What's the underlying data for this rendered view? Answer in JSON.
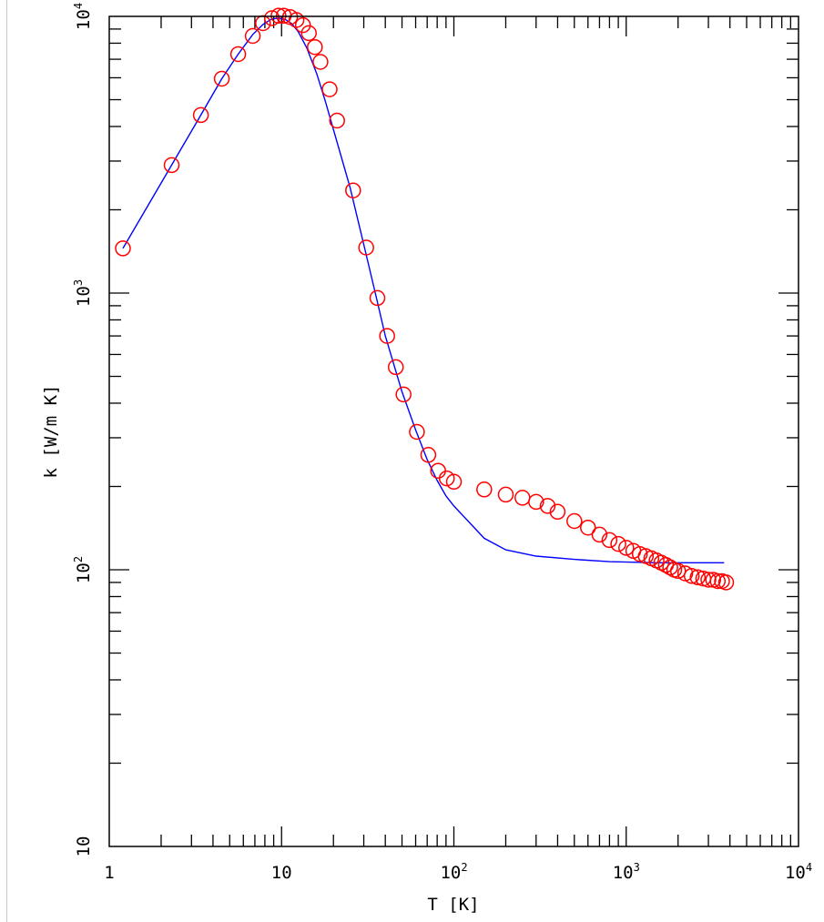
{
  "chart_data": {
    "type": "scatter",
    "title": "",
    "xlabel": "T [K]",
    "ylabel": "k [W/m K]",
    "xscale": "log",
    "yscale": "log",
    "xlim": [
      1,
      10000
    ],
    "ylim": [
      10,
      10000
    ],
    "grid": false,
    "x_tick_labels": [
      {
        "value": 1,
        "base": "1",
        "exp": ""
      },
      {
        "value": 10,
        "base": "10",
        "exp": ""
      },
      {
        "value": 100,
        "base": "10",
        "exp": "2"
      },
      {
        "value": 1000,
        "base": "10",
        "exp": "3"
      },
      {
        "value": 10000,
        "base": "10",
        "exp": "4"
      }
    ],
    "y_tick_labels": [
      {
        "value": 10,
        "base": "10",
        "exp": ""
      },
      {
        "value": 100,
        "base": "10",
        "exp": "2"
      },
      {
        "value": 1000,
        "base": "10",
        "exp": "3"
      },
      {
        "value": 10000,
        "base": "10",
        "exp": "4"
      }
    ],
    "series": [
      {
        "kind": "line",
        "color": "#0000ff",
        "x": [
          1.2,
          2.3,
          3.4,
          4.5,
          5.6,
          6.8,
          7.8,
          8.8,
          9.6,
          10.5,
          11.5,
          12.5,
          14,
          16,
          18,
          20,
          25,
          30,
          35,
          40,
          50,
          60,
          70,
          80,
          90,
          100,
          150,
          200,
          300,
          500,
          800,
          1500,
          3700
        ],
        "y": [
          1450,
          2900,
          4400,
          5950,
          7300,
          8600,
          9350,
          9800,
          9850,
          9750,
          9400,
          8800,
          7700,
          6200,
          4900,
          3900,
          2400,
          1500,
          1000,
          700,
          440,
          320,
          250,
          210,
          185,
          170,
          130,
          118,
          112,
          109,
          107,
          106,
          106
        ]
      },
      {
        "kind": "scatter",
        "color": "#ff0000",
        "marker": "open-circle",
        "x": [
          1.2,
          2.3,
          3.4,
          4.5,
          5.6,
          6.8,
          7.8,
          8.8,
          9.6,
          10.3,
          11.2,
          12.2,
          13.3,
          14.4,
          15.6,
          16.8,
          19,
          21,
          26,
          31,
          36,
          41,
          46,
          51,
          61,
          71,
          81,
          91,
          100,
          150,
          200,
          250,
          300,
          350,
          400,
          500,
          600,
          700,
          800,
          900,
          1000,
          1100,
          1200,
          1300,
          1400,
          1500,
          1600,
          1700,
          1800,
          1900,
          2000,
          2200,
          2400,
          2600,
          2800,
          3000,
          3200,
          3400,
          3600,
          3800
        ],
        "y": [
          1450,
          2900,
          4400,
          5950,
          7300,
          8500,
          9450,
          9850,
          10050,
          10050,
          9950,
          9700,
          9300,
          8700,
          7750,
          6850,
          5450,
          4200,
          2350,
          1460,
          960,
          700,
          540,
          430,
          315,
          260,
          228,
          214,
          208,
          195,
          187,
          182,
          176,
          170,
          162,
          150,
          142,
          134,
          128,
          124,
          120,
          117,
          114,
          112,
          110,
          108,
          106,
          104,
          102,
          100,
          99,
          97,
          95,
          94,
          93,
          92,
          92,
          91,
          91,
          90
        ]
      }
    ]
  }
}
